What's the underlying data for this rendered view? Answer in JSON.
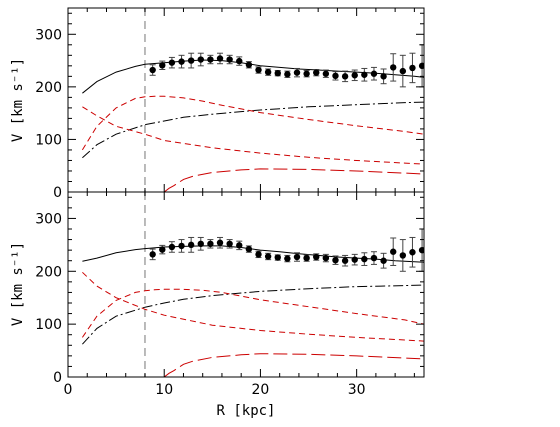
{
  "chart_data": [
    {
      "type": "line",
      "panel": "top",
      "xlim": [
        0,
        37
      ],
      "ylim": [
        0,
        350
      ],
      "yticks": [
        0,
        100,
        200,
        300
      ],
      "ylabel": "V [km s⁻¹]",
      "xlabel": "",
      "grid": false,
      "vline_x": 8,
      "series": [
        {
          "style": "solid",
          "color": "#000000",
          "x": [
            1.5,
            3,
            5,
            7,
            8,
            10,
            12,
            14,
            16,
            18,
            20,
            22,
            24,
            26,
            28,
            30,
            32,
            34,
            36,
            37
          ],
          "y": [
            188,
            210,
            228,
            239,
            243,
            246,
            249,
            251,
            250,
            246,
            240,
            237,
            234,
            232,
            230,
            228,
            226,
            223,
            220,
            218
          ]
        },
        {
          "style": "dashdot",
          "color": "#000000",
          "x": [
            1.5,
            3,
            5,
            8,
            10,
            12,
            15,
            18,
            20,
            25,
            30,
            35,
            37
          ],
          "y": [
            65,
            90,
            110,
            128,
            135,
            142,
            148,
            153,
            156,
            162,
            166,
            170,
            171
          ]
        },
        {
          "style": "dashed",
          "color": "#cc0000",
          "x": [
            1.5,
            3,
            5,
            7,
            8,
            9,
            10,
            12,
            14,
            16,
            18,
            20,
            25,
            30,
            35,
            37
          ],
          "y": [
            80,
            125,
            160,
            178,
            181,
            182,
            182,
            179,
            173,
            165,
            158,
            151,
            138,
            126,
            115,
            110
          ]
        },
        {
          "style": "dashed",
          "color": "#cc0000",
          "x": [
            1.5,
            3,
            5,
            8,
            10,
            15,
            20,
            25,
            30,
            35,
            37
          ],
          "y": [
            162,
            145,
            125,
            110,
            98,
            84,
            74,
            66,
            60,
            55,
            53
          ]
        },
        {
          "style": "longdash",
          "color": "#cc0000",
          "x": [
            10,
            10.5,
            11,
            12,
            13,
            15,
            18,
            20,
            25,
            30,
            35,
            37
          ],
          "y": [
            0,
            7,
            12,
            24,
            30,
            37,
            42,
            44,
            43,
            40,
            36,
            34
          ]
        }
      ],
      "points": {
        "x": [
          8.8,
          9.8,
          10.8,
          11.8,
          12.8,
          13.8,
          14.8,
          15.8,
          16.8,
          17.8,
          18.8,
          19.8,
          20.8,
          21.8,
          22.8,
          23.8,
          24.8,
          25.8,
          26.8,
          27.8,
          28.8,
          29.8,
          30.8,
          31.8,
          32.8,
          33.8,
          34.8,
          35.8,
          36.8
        ],
        "y": [
          232,
          241,
          246,
          248,
          250,
          252,
          252,
          254,
          252,
          249,
          242,
          232,
          228,
          226,
          224,
          227,
          225,
          227,
          225,
          221,
          220,
          222,
          223,
          225,
          220,
          237,
          230,
          236,
          240
        ],
        "err": [
          10,
          8,
          10,
          12,
          14,
          12,
          8,
          10,
          8,
          8,
          6,
          6,
          6,
          5,
          6,
          8,
          6,
          6,
          7,
          8,
          10,
          10,
          12,
          12,
          14,
          26,
          30,
          28,
          40
        ]
      }
    },
    {
      "type": "line",
      "panel": "bottom",
      "xlim": [
        0,
        37
      ],
      "ylim": [
        0,
        350
      ],
      "xticks": [
        0,
        10,
        20,
        30
      ],
      "yticks": [
        0,
        100,
        200,
        300
      ],
      "ylabel": "V [km s⁻¹]",
      "xlabel": "R [kpc]",
      "grid": false,
      "vline_x": 8,
      "series": [
        {
          "style": "solid",
          "color": "#000000",
          "x": [
            1.5,
            3,
            5,
            7,
            8,
            10,
            12,
            14,
            16,
            18,
            20,
            22,
            24,
            26,
            28,
            30,
            32,
            34,
            36,
            37
          ],
          "y": [
            219,
            225,
            235,
            241,
            243,
            246,
            247,
            248,
            248,
            245,
            240,
            237,
            233,
            230,
            227,
            225,
            223,
            220,
            218,
            217
          ]
        },
        {
          "style": "dashdot",
          "color": "#000000",
          "x": [
            1.5,
            3,
            5,
            8,
            10,
            12,
            15,
            18,
            20,
            25,
            30,
            35,
            37
          ],
          "y": [
            62,
            92,
            115,
            132,
            140,
            147,
            154,
            159,
            162,
            167,
            171,
            173,
            174
          ]
        },
        {
          "style": "dashed",
          "color": "#cc0000",
          "x": [
            1.5,
            3,
            5,
            7,
            8,
            9,
            10,
            12,
            14,
            16,
            18,
            20,
            25,
            30,
            35,
            37
          ],
          "y": [
            75,
            115,
            145,
            160,
            163,
            165,
            166,
            166,
            164,
            160,
            153,
            146,
            133,
            120,
            108,
            100
          ]
        },
        {
          "style": "dashed",
          "color": "#cc0000",
          "x": [
            1.5,
            3,
            5,
            8,
            10,
            15,
            20,
            25,
            30,
            35,
            37
          ],
          "y": [
            198,
            172,
            150,
            128,
            117,
            98,
            88,
            81,
            75,
            70,
            68
          ]
        },
        {
          "style": "longdash",
          "color": "#cc0000",
          "x": [
            10,
            10.5,
            11,
            12,
            13,
            15,
            18,
            20,
            25,
            30,
            35,
            37
          ],
          "y": [
            0,
            7,
            12,
            24,
            30,
            37,
            42,
            44,
            43,
            40,
            36,
            34
          ]
        }
      ],
      "points": {
        "x": [
          8.8,
          9.8,
          10.8,
          11.8,
          12.8,
          13.8,
          14.8,
          15.8,
          16.8,
          17.8,
          18.8,
          19.8,
          20.8,
          21.8,
          22.8,
          23.8,
          24.8,
          25.8,
          26.8,
          27.8,
          28.8,
          29.8,
          30.8,
          31.8,
          32.8,
          33.8,
          34.8,
          35.8,
          36.8
        ],
        "y": [
          232,
          241,
          246,
          248,
          250,
          252,
          252,
          254,
          252,
          249,
          242,
          232,
          228,
          226,
          224,
          227,
          225,
          227,
          225,
          221,
          220,
          222,
          223,
          225,
          220,
          237,
          230,
          236,
          240
        ],
        "err": [
          10,
          8,
          10,
          12,
          14,
          12,
          8,
          10,
          8,
          8,
          6,
          6,
          6,
          5,
          6,
          8,
          6,
          6,
          7,
          8,
          10,
          10,
          12,
          12,
          14,
          26,
          30,
          28,
          40
        ]
      }
    }
  ]
}
